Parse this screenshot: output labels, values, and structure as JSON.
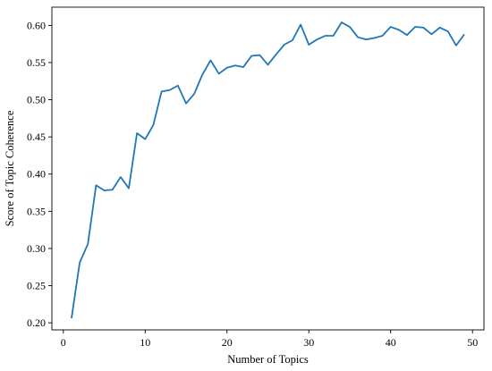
{
  "chart_data": {
    "type": "line",
    "title": "",
    "xlabel": "Number of Topics",
    "ylabel": "Score of Topic Coherence",
    "xlim": [
      -1.4,
      51.4
    ],
    "ylim": [
      0.1905,
      0.6245
    ],
    "xticks": [
      0,
      10,
      20,
      30,
      40,
      50
    ],
    "xtick_labels": [
      "0",
      "10",
      "20",
      "30",
      "40",
      "50"
    ],
    "yticks": [
      0.2,
      0.25,
      0.3,
      0.35,
      0.4,
      0.45,
      0.5,
      0.55,
      0.6
    ],
    "ytick_labels": [
      "0.20",
      "0.25",
      "0.30",
      "0.35",
      "0.40",
      "0.45",
      "0.50",
      "0.55",
      "0.60"
    ],
    "grid": false,
    "legend": "none",
    "line_color": "#1f77b4",
    "x": [
      1,
      2,
      3,
      4,
      5,
      6,
      7,
      8,
      9,
      10,
      11,
      12,
      13,
      14,
      15,
      16,
      17,
      18,
      19,
      20,
      21,
      22,
      23,
      24,
      25,
      26,
      27,
      28,
      29,
      30,
      31,
      32,
      33,
      34,
      35,
      36,
      37,
      38,
      39,
      40,
      41,
      42,
      43,
      44,
      45,
      46,
      47,
      48,
      49
    ],
    "y": [
      0.206,
      0.281,
      0.306,
      0.385,
      0.378,
      0.379,
      0.396,
      0.381,
      0.455,
      0.447,
      0.466,
      0.511,
      0.513,
      0.519,
      0.495,
      0.508,
      0.534,
      0.553,
      0.535,
      0.543,
      0.546,
      0.544,
      0.559,
      0.56,
      0.547,
      0.561,
      0.574,
      0.58,
      0.601,
      0.574,
      0.581,
      0.586,
      0.586,
      0.604,
      0.598,
      0.584,
      0.581,
      0.583,
      0.586,
      0.598,
      0.594,
      0.587,
      0.598,
      0.597,
      0.588,
      0.597,
      0.592,
      0.573,
      0.588
    ]
  }
}
